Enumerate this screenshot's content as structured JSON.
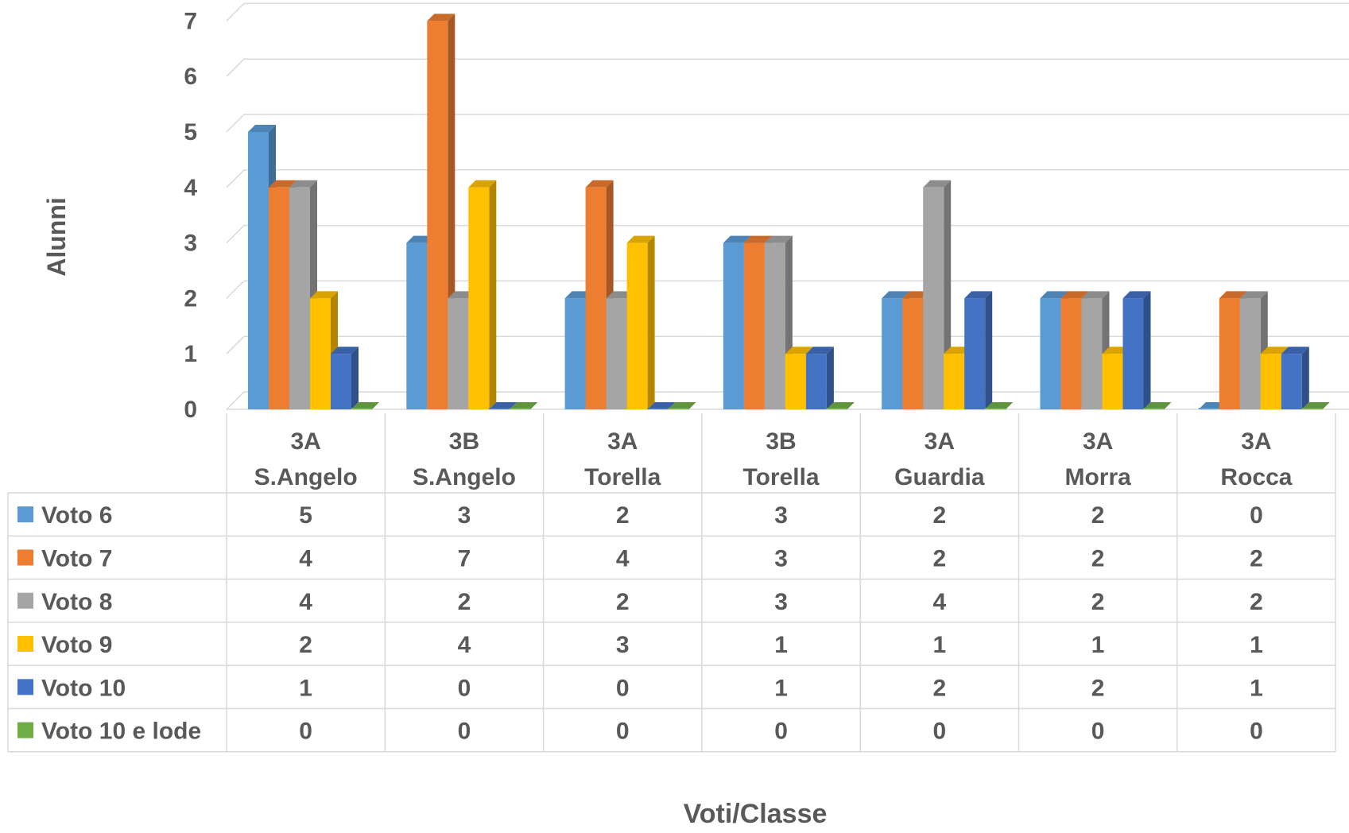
{
  "chart_data": {
    "type": "bar",
    "style": "3d-clustered-column-with-data-table",
    "title": "",
    "xlabel": "Voti/Classe",
    "ylabel": "Alunni",
    "ylim": [
      0,
      7
    ],
    "yticks": [
      "0",
      "1",
      "2",
      "3",
      "4",
      "5",
      "6",
      "7"
    ],
    "grid": true,
    "legend_placement": "data-table",
    "categories": [
      [
        "3A",
        "S.Angelo"
      ],
      [
        "3B",
        "S.Angelo"
      ],
      [
        "3A",
        "Torella"
      ],
      [
        "3B",
        "Torella"
      ],
      [
        "3A",
        "Guardia"
      ],
      [
        "3A",
        "Morra"
      ],
      [
        "3A",
        "Rocca"
      ]
    ],
    "series": [
      {
        "name": "Voto 6",
        "color": "#5b9bd5",
        "values": [
          5,
          3,
          2,
          3,
          2,
          2,
          0
        ]
      },
      {
        "name": "Voto 7",
        "color": "#ed7d31",
        "values": [
          4,
          7,
          4,
          3,
          2,
          2,
          2
        ]
      },
      {
        "name": "Voto 8",
        "color": "#a5a5a5",
        "values": [
          4,
          2,
          2,
          3,
          4,
          2,
          2
        ]
      },
      {
        "name": "Voto 9",
        "color": "#ffc000",
        "values": [
          2,
          4,
          3,
          1,
          1,
          1,
          1
        ]
      },
      {
        "name": "Voto 10",
        "color": "#4472c4",
        "values": [
          1,
          0,
          0,
          1,
          2,
          2,
          1
        ]
      },
      {
        "name": "Voto 10 e lode",
        "color": "#70ad47",
        "values": [
          0,
          0,
          0,
          0,
          0,
          0,
          0
        ]
      }
    ]
  }
}
